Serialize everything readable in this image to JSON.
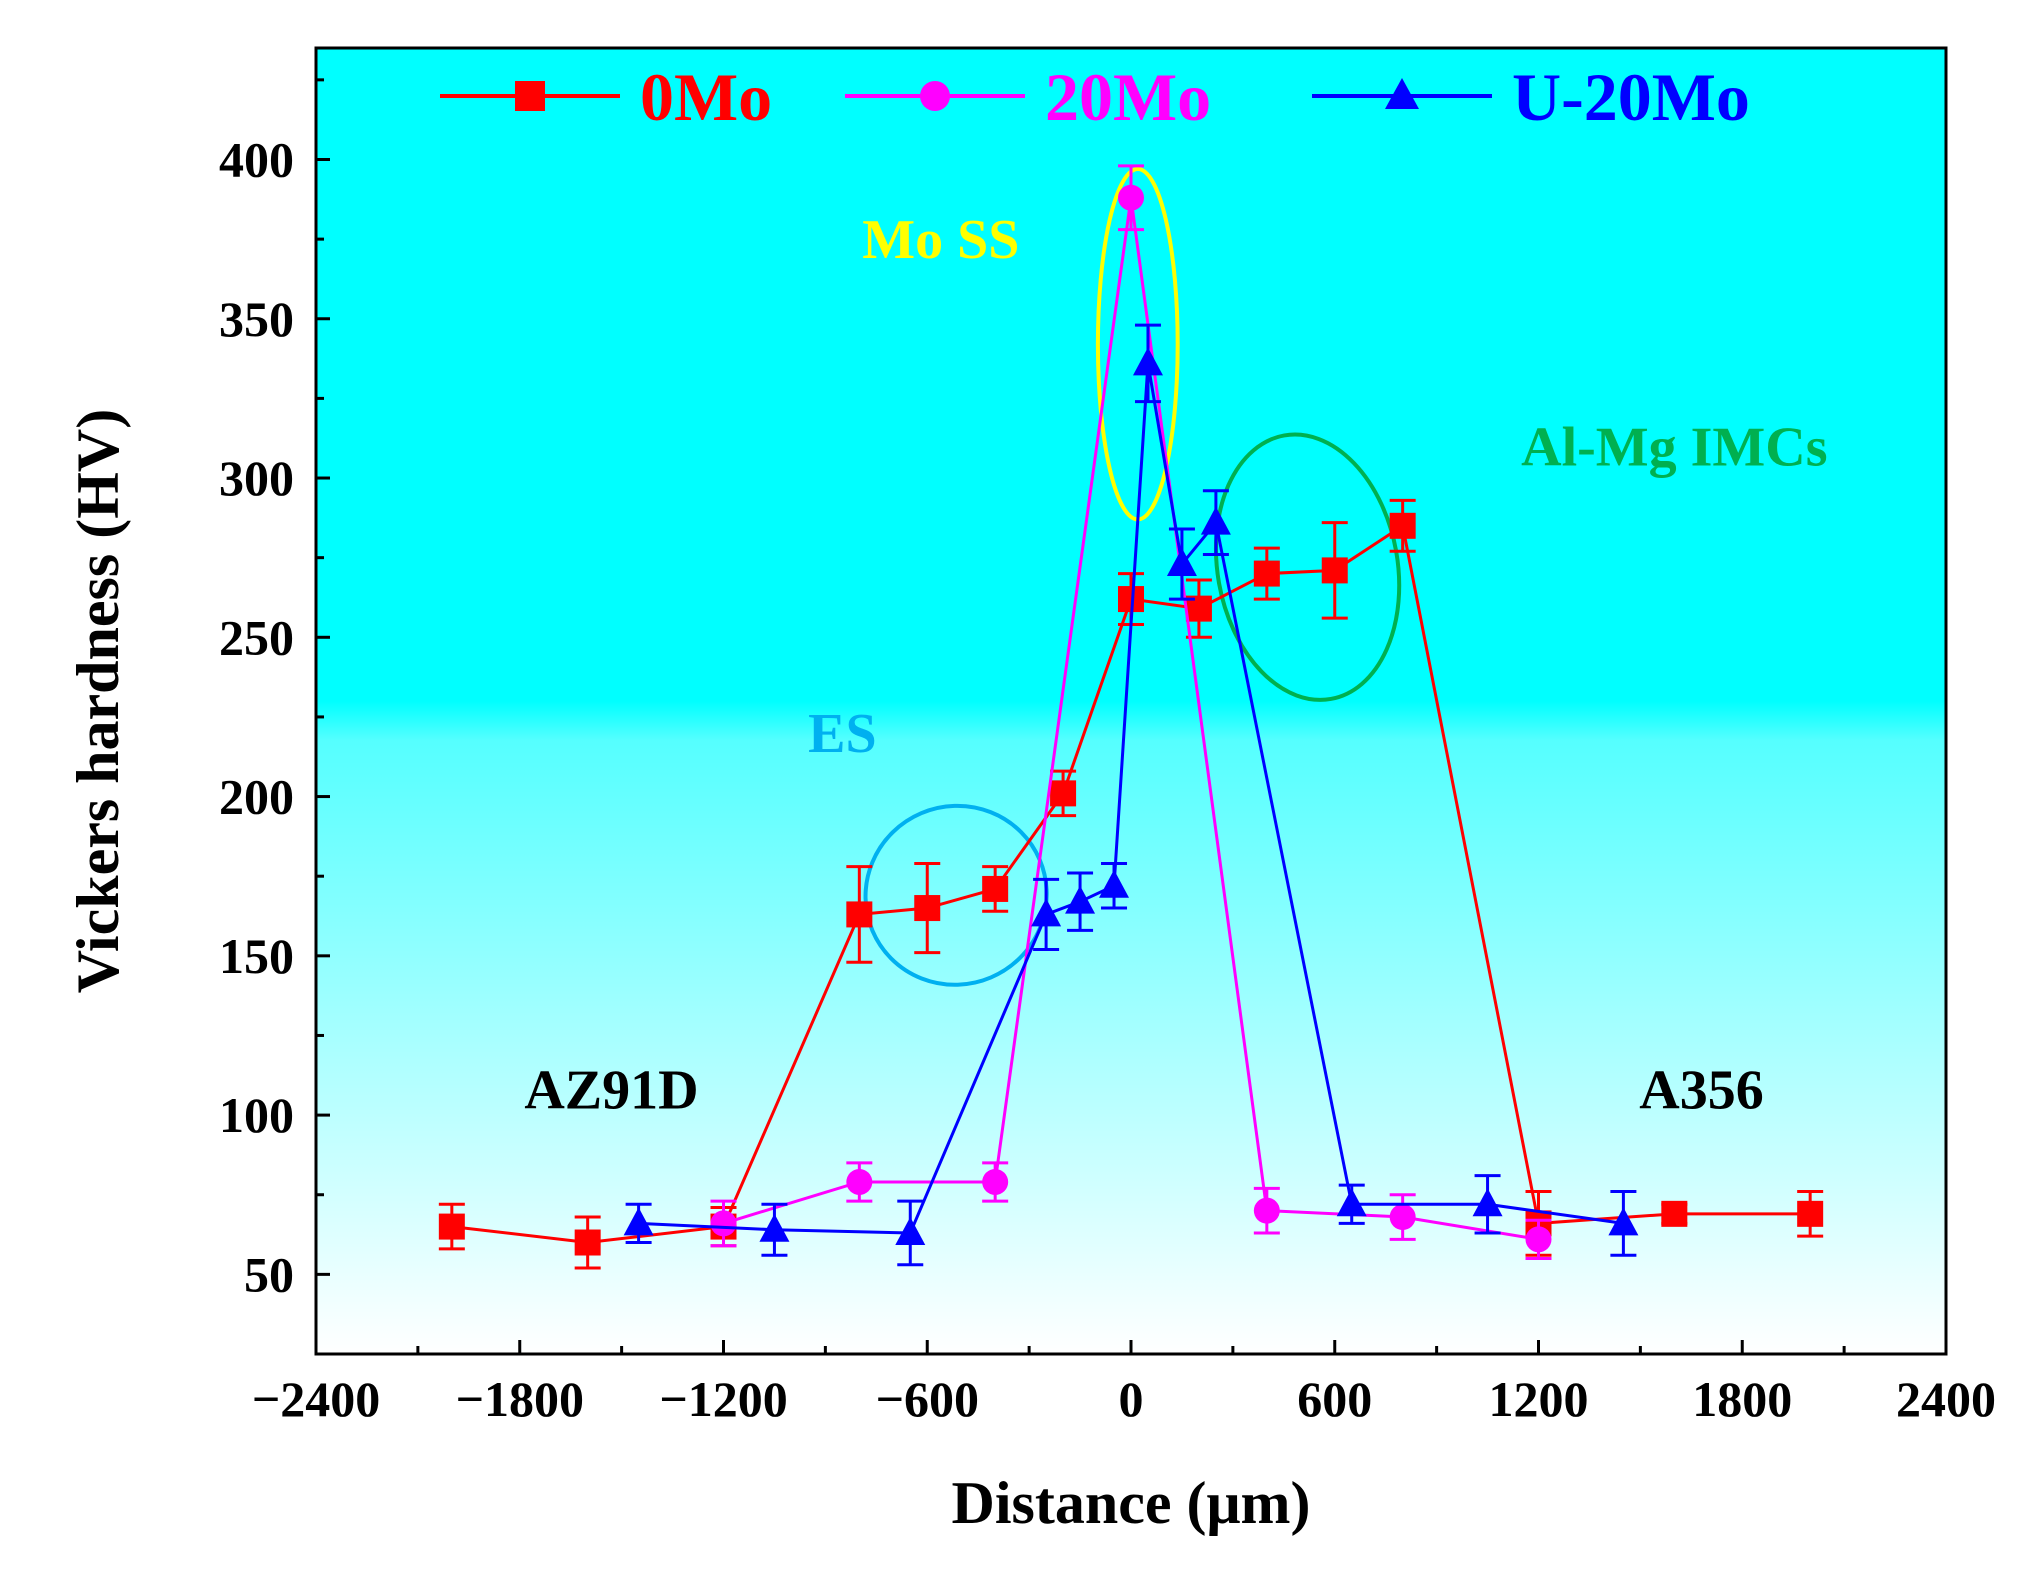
{
  "chart_data": {
    "type": "line",
    "title": "",
    "xlabel": "Distance (μm)",
    "ylabel": "Vickers hardness (HV)",
    "xlim": [
      -2400,
      2400
    ],
    "ylim": [
      25,
      435
    ],
    "xticks": [
      -2400,
      -1800,
      -1200,
      -600,
      0,
      600,
      1200,
      1800,
      2400
    ],
    "xtick_labels": [
      "−2400",
      "−1800",
      "−1200",
      "−600",
      "0",
      "600",
      "1200",
      "1800",
      "2400"
    ],
    "yticks": [
      50,
      100,
      150,
      200,
      250,
      300,
      350,
      400
    ],
    "ytick_labels": [
      "50",
      "100",
      "150",
      "200",
      "250",
      "300",
      "350",
      "400"
    ],
    "legend_position": "top",
    "background": {
      "top": "#00ffff",
      "bottom": "#ffffff"
    },
    "series": [
      {
        "name": "0Mo",
        "color": "#ff0000",
        "marker": "square",
        "x": [
          -2000,
          -1600,
          -1200,
          -800,
          -600,
          -400,
          -200,
          0,
          200,
          400,
          600,
          800,
          1200,
          1600,
          2000
        ],
        "y": [
          65,
          60,
          65,
          163,
          165,
          171,
          201,
          262,
          259,
          270,
          271,
          285,
          66,
          69,
          69
        ],
        "err": [
          7,
          8,
          6,
          15,
          14,
          7,
          7,
          8,
          9,
          8,
          15,
          8,
          10,
          3,
          7
        ]
      },
      {
        "name": "20Mo",
        "color": "#ff00ff",
        "marker": "circle",
        "x": [
          -1200,
          -800,
          -400,
          0,
          400,
          800,
          1200
        ],
        "y": [
          66,
          79,
          79,
          388,
          70,
          68,
          61
        ],
        "err": [
          7,
          6,
          6,
          10,
          7,
          7,
          6
        ]
      },
      {
        "name": "U-20Mo",
        "color": "#0000ff",
        "marker": "triangle",
        "x": [
          -1450,
          -1050,
          -650,
          -250,
          -150,
          -50,
          50,
          150,
          250,
          650,
          1050,
          1450
        ],
        "y": [
          66,
          64,
          63,
          163,
          167,
          172,
          336,
          273,
          286,
          72,
          72,
          66
        ],
        "err": [
          6,
          8,
          10,
          11,
          9,
          7,
          12,
          11,
          10,
          6,
          9,
          10
        ]
      }
    ],
    "annotations": [
      {
        "text": "Mo SS",
        "color": "#ffff00",
        "x": -560,
        "y": 369
      },
      {
        "text": "Al-Mg IMCs",
        "color": "#00b050",
        "x": 1600,
        "y": 304
      },
      {
        "text": "ES",
        "color": "#00b0f0",
        "x": -850,
        "y": 214
      },
      {
        "text": "AZ91D",
        "color": "#000000",
        "x": -1530,
        "y": 102
      },
      {
        "text": "A356",
        "color": "#000000",
        "x": 1680,
        "y": 102
      }
    ],
    "ellipses": [
      {
        "name": "mo-ss-ellipse",
        "color": "#ffff00",
        "cx": 20,
        "cy": 342,
        "rx": 235,
        "ry": 55
      },
      {
        "name": "al-mg-imcs-ellipse",
        "color": "#00b050",
        "cx": 520,
        "cy": 272,
        "rx": 530,
        "ry": 42,
        "rotate": -10
      },
      {
        "name": "es-ellipse",
        "color": "#00b0f0",
        "cx": -515,
        "cy": 169,
        "rx": 535,
        "ry": 28,
        "rotate": -23
      }
    ]
  }
}
